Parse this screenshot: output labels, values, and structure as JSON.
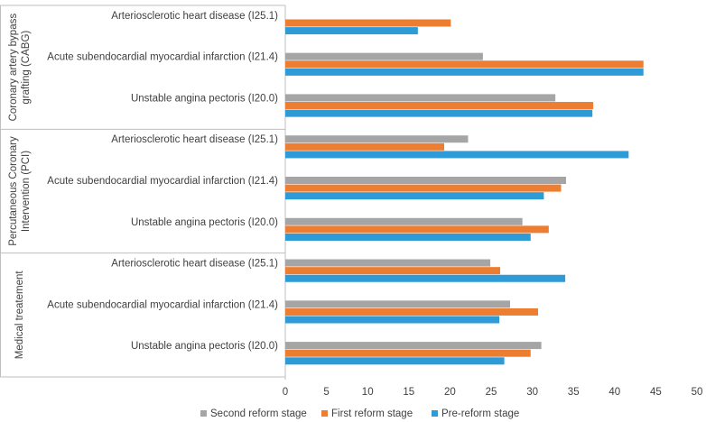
{
  "chart_data": {
    "type": "bar",
    "orientation": "horizontal",
    "title": "",
    "xlabel": "",
    "ylabel": "",
    "xlim": [
      0,
      50
    ],
    "x_ticks": [
      0,
      5,
      10,
      15,
      20,
      25,
      30,
      35,
      40,
      45,
      50
    ],
    "grid": false,
    "legend_position": "bottom",
    "colors": {
      "Second reform stage": "#a5a5a5",
      "First reform stage": "#ed7d31",
      "Pre-reform stage": "#2e9bd6"
    },
    "groups": [
      {
        "label_lines": [
          "Coronary artery bypass",
          "grafting (CABG)"
        ],
        "categories": [
          {
            "label": "Arteriosclerotic heart disease (I25.1)",
            "values": {
              "Second reform stage": null,
              "First reform stage": 20.1,
              "Pre-reform stage": 16.1
            }
          },
          {
            "label": "Acute subendocardial myocardial infarction (I21.4)",
            "values": {
              "Second reform stage": 24.0,
              "First reform stage": 43.5,
              "Pre-reform stage": 43.5
            }
          },
          {
            "label": "Unstable angina pectoris (I20.0)",
            "values": {
              "Second reform stage": 32.8,
              "First reform stage": 37.4,
              "Pre-reform stage": 37.3
            }
          }
        ]
      },
      {
        "label_lines": [
          "Percutaneous Coronary",
          "Intervention (PCI)"
        ],
        "categories": [
          {
            "label": "Arteriosclerotic heart disease (I25.1)",
            "values": {
              "Second reform stage": 22.2,
              "First reform stage": 19.3,
              "Pre-reform stage": 41.7
            }
          },
          {
            "label": "Acute subendocardial myocardial infarction (I21.4)",
            "values": {
              "Second reform stage": 34.1,
              "First reform stage": 33.5,
              "Pre-reform stage": 31.4
            }
          },
          {
            "label": "Unstable angina pectoris (I20.0)",
            "values": {
              "Second reform stage": 28.8,
              "First reform stage": 32.0,
              "Pre-reform stage": 29.8
            }
          }
        ]
      },
      {
        "label_lines": [
          "Medical treatement"
        ],
        "categories": [
          {
            "label": "Arteriosclerotic heart disease (I25.1)",
            "values": {
              "Second reform stage": 24.9,
              "First reform stage": 26.1,
              "Pre-reform stage": 34.0
            }
          },
          {
            "label": "Acute subendocardial myocardial infarction (I21.4)",
            "values": {
              "Second reform stage": 27.3,
              "First reform stage": 30.7,
              "Pre-reform stage": 26.0
            }
          },
          {
            "label": "Unstable angina pectoris (I20.0)",
            "values": {
              "Second reform stage": 31.1,
              "First reform stage": 29.8,
              "Pre-reform stage": 26.6
            }
          }
        ]
      }
    ],
    "series_order": [
      "Second reform stage",
      "First reform stage",
      "Pre-reform stage"
    ],
    "legend": [
      "Second reform stage",
      "First reform stage",
      "Pre-reform stage"
    ]
  }
}
